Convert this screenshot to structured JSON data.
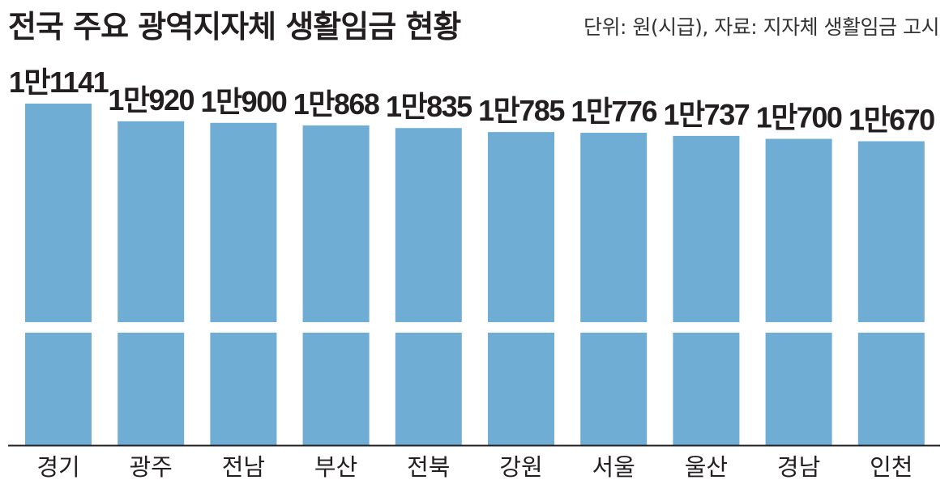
{
  "header": {
    "title": "전국 주요 광역지자체 생활임금 현황",
    "unit_note": "단위: 원(시급), 자료: 지자체 생활임금 고시"
  },
  "colors": {
    "bar": "#6fadd5",
    "axis": "#231f20",
    "text": "#231f20"
  },
  "chart_data": {
    "type": "bar",
    "title": "전국 주요 광역지자체 생활임금 현황",
    "categories": [
      "경기",
      "광주",
      "전남",
      "부산",
      "전북",
      "강원",
      "서울",
      "울산",
      "경남",
      "인천"
    ],
    "values": [
      11141,
      10920,
      10900,
      10868,
      10835,
      10785,
      10776,
      10737,
      10700,
      10670
    ],
    "value_labels": [
      "1만1141",
      "1만920",
      "1만900",
      "1만868",
      "1만835",
      "1만785",
      "1만776",
      "1만737",
      "1만700",
      "1만670"
    ],
    "axis_break": true,
    "ylim": [
      0,
      11141
    ],
    "grid": false,
    "legend": "none"
  }
}
